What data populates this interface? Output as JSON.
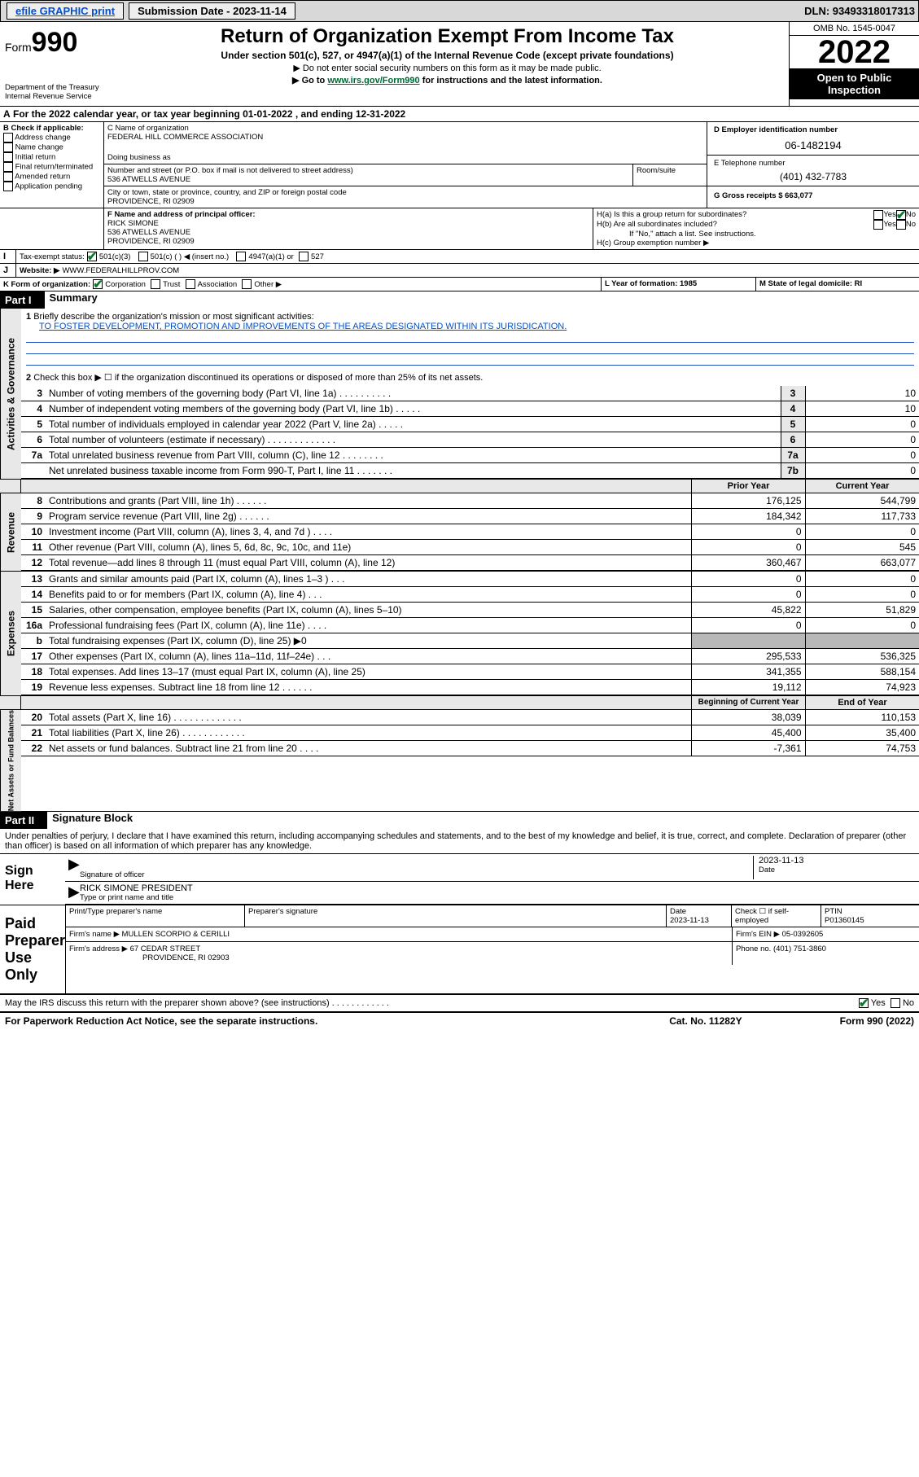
{
  "topbar": {
    "efile": "efile GRAPHIC print",
    "submission": "Submission Date - 2023-11-14",
    "dln": "DLN: 93493318017313"
  },
  "header": {
    "form": "Form",
    "num": "990",
    "dept": "Department of the Treasury",
    "irs": "Internal Revenue Service",
    "title": "Return of Organization Exempt From Income Tax",
    "sub": "Under section 501(c), 527, or 4947(a)(1) of the Internal Revenue Code (except private foundations)",
    "note1": "▶ Do not enter social security numbers on this form as it may be made public.",
    "note2_pre": "▶ Go to ",
    "note2_link": "www.irs.gov/Form990",
    "note2_post": " for instructions and the latest information.",
    "omb": "OMB No. 1545-0047",
    "year": "2022",
    "open": "Open to Public Inspection"
  },
  "A": {
    "text": "For the 2022 calendar year, or tax year beginning 01-01-2022   , and ending 12-31-2022"
  },
  "B": {
    "label": "B Check if applicable:",
    "items": [
      "Address change",
      "Name change",
      "Initial return",
      "Final return/terminated",
      "Amended return",
      "Application pending"
    ]
  },
  "C": {
    "label": "C Name of organization",
    "name": "FEDERAL HILL COMMERCE ASSOCIATION",
    "dba_label": "Doing business as",
    "addr_label": "Number and street (or P.O. box if mail is not delivered to street address)",
    "room": "Room/suite",
    "addr": "536 ATWELLS AVENUE",
    "city_label": "City or town, state or province, country, and ZIP or foreign postal code",
    "city": "PROVIDENCE, RI  02909"
  },
  "D": {
    "label": "D Employer identification number",
    "val": "06-1482194"
  },
  "E": {
    "label": "E Telephone number",
    "val": "(401) 432-7783"
  },
  "G": {
    "label": "G Gross receipts $ 663,077"
  },
  "F": {
    "label": "F Name and address of principal officer:",
    "name": "RICK SIMONE",
    "addr1": "536 ATWELLS AVENUE",
    "addr2": "PROVIDENCE, RI  02909"
  },
  "H": {
    "a": "H(a)  Is this a group return for subordinates?",
    "b": "H(b)  Are all subordinates included?",
    "bnote": "If \"No,\" attach a list. See instructions.",
    "c": "H(c)  Group exemption number ▶",
    "yes": "Yes",
    "no": "No"
  },
  "I": {
    "label": "Tax-exempt status:",
    "o1": "501(c)(3)",
    "o2": "501(c) (  ) ◀ (insert no.)",
    "o3": "4947(a)(1) or",
    "o4": "527"
  },
  "J": {
    "label": "Website: ▶",
    "val": "WWW.FEDERALHILLPROV.COM"
  },
  "K": {
    "label": "K Form of organization:",
    "corp": "Corporation",
    "trust": "Trust",
    "assoc": "Association",
    "other": "Other ▶"
  },
  "L": {
    "label": "L Year of formation: 1985"
  },
  "M": {
    "label": "M State of legal domicile: RI"
  },
  "part1": {
    "name": "Part I",
    "title": "Summary"
  },
  "summary": {
    "l1a": "Briefly describe the organization's mission or most significant activities:",
    "l1b": "TO FOSTER DEVELOPMENT, PROMOTION AND IMPROVEMENTS OF THE AREAS DESIGNATED WITHIN ITS JURISDICATION.",
    "l2": "Check this box ▶ ☐  if the organization discontinued its operations or disposed of more than 25% of its net assets.",
    "gov": [
      {
        "n": "3",
        "t": "Number of voting members of the governing body (Part VI, line 1a)  .  .  .  .  .  .  .  .  .  .",
        "r": "3",
        "v": "10"
      },
      {
        "n": "4",
        "t": "Number of independent voting members of the governing body (Part VI, line 1b)  .  .  .  .  .",
        "r": "4",
        "v": "10"
      },
      {
        "n": "5",
        "t": "Total number of individuals employed in calendar year 2022 (Part V, line 2a)  .  .  .  .  .",
        "r": "5",
        "v": "0"
      },
      {
        "n": "6",
        "t": "Total number of volunteers (estimate if necessary)  .  .  .  .  .  .  .  .  .  .  .  .  .",
        "r": "6",
        "v": "0"
      },
      {
        "n": "7a",
        "t": "Total unrelated business revenue from Part VIII, column (C), line 12  .  .  .  .  .  .  .  .",
        "r": "7a",
        "v": "0"
      },
      {
        "n": "",
        "t": "Net unrelated business taxable income from Form 990-T, Part I, line 11  .  .  .  .  .  .  .",
        "r": "7b",
        "v": "0"
      }
    ],
    "hdr_prior": "Prior Year",
    "hdr_curr": "Current Year",
    "rev": [
      {
        "n": "8",
        "t": "Contributions and grants (Part VIII, line 1h)  .  .  .  .  .  .",
        "p": "176,125",
        "c": "544,799"
      },
      {
        "n": "9",
        "t": "Program service revenue (Part VIII, line 2g)  .  .  .  .  .  .",
        "p": "184,342",
        "c": "117,733"
      },
      {
        "n": "10",
        "t": "Investment income (Part VIII, column (A), lines 3, 4, and 7d )  .  .  .  .",
        "p": "0",
        "c": "0"
      },
      {
        "n": "11",
        "t": "Other revenue (Part VIII, column (A), lines 5, 6d, 8c, 9c, 10c, and 11e)",
        "p": "0",
        "c": "545"
      },
      {
        "n": "12",
        "t": "Total revenue—add lines 8 through 11 (must equal Part VIII, column (A), line 12)",
        "p": "360,467",
        "c": "663,077"
      }
    ],
    "exp": [
      {
        "n": "13",
        "t": "Grants and similar amounts paid (Part IX, column (A), lines 1–3 )  .  .  .",
        "p": "0",
        "c": "0"
      },
      {
        "n": "14",
        "t": "Benefits paid to or for members (Part IX, column (A), line 4)  .  .  .",
        "p": "0",
        "c": "0"
      },
      {
        "n": "15",
        "t": "Salaries, other compensation, employee benefits (Part IX, column (A), lines 5–10)",
        "p": "45,822",
        "c": "51,829"
      },
      {
        "n": "16a",
        "t": "Professional fundraising fees (Part IX, column (A), line 11e)  .  .  .  .",
        "p": "0",
        "c": "0"
      },
      {
        "n": "b",
        "t": "Total fundraising expenses (Part IX, column (D), line 25) ▶0",
        "p": "",
        "c": "",
        "shade": true
      },
      {
        "n": "17",
        "t": "Other expenses (Part IX, column (A), lines 11a–11d, 11f–24e)  .  .  .",
        "p": "295,533",
        "c": "536,325"
      },
      {
        "n": "18",
        "t": "Total expenses. Add lines 13–17 (must equal Part IX, column (A), line 25)",
        "p": "341,355",
        "c": "588,154"
      },
      {
        "n": "19",
        "t": "Revenue less expenses. Subtract line 18 from line 12  .  .  .  .  .  .",
        "p": "19,112",
        "c": "74,923"
      }
    ],
    "hdr_beg": "Beginning of Current Year",
    "hdr_end": "End of Year",
    "net": [
      {
        "n": "20",
        "t": "Total assets (Part X, line 16)  .  .  .  .  .  .  .  .  .  .  .  .  .",
        "p": "38,039",
        "c": "110,153"
      },
      {
        "n": "21",
        "t": "Total liabilities (Part X, line 26)  .  .  .  .  .  .  .  .  .  .  .  .",
        "p": "45,400",
        "c": "35,400"
      },
      {
        "n": "22",
        "t": "Net assets or fund balances. Subtract line 21 from line 20  .  .  .  .",
        "p": "-7,361",
        "c": "74,753"
      }
    ]
  },
  "vert": {
    "gov": "Activities & Governance",
    "rev": "Revenue",
    "exp": "Expenses",
    "net": "Net Assets or Fund Balances"
  },
  "part2": {
    "name": "Part II",
    "title": "Signature Block"
  },
  "sig": {
    "decl": "Under penalties of perjury, I declare that I have examined this return, including accompanying schedules and statements, and to the best of my knowledge and belief, it is true, correct, and complete. Declaration of preparer (other than officer) is based on all information of which preparer has any knowledge.",
    "here": "Sign Here",
    "sig_of": "Signature of officer",
    "date": "Date",
    "date_val": "2023-11-13",
    "name": "RICK SIMONE  PRESIDENT",
    "name_lbl": "Type or print name and title",
    "paid": "Paid Preparer Use Only",
    "p_name": "Print/Type preparer's name",
    "p_sig": "Preparer's signature",
    "p_date": "Date",
    "p_date_v": "2023-11-13",
    "p_self": "Check ☐ if self-employed",
    "ptin": "PTIN",
    "ptin_v": "P01360145",
    "firm": "Firm's name   ▶",
    "firm_v": "MULLEN SCORPIO & CERILLI",
    "fein": "Firm's EIN ▶ 05-0392605",
    "faddr": "Firm's address ▶",
    "faddr_v1": "67 CEDAR STREET",
    "faddr_v2": "PROVIDENCE, RI  02903",
    "fphone": "Phone no. (401) 751-3860",
    "may": "May the IRS discuss this return with the preparer shown above? (see instructions)  .  .  .  .  .  .  .  .  .  .  .  .",
    "yes": "Yes",
    "no": "No"
  },
  "footer": {
    "l": "For Paperwork Reduction Act Notice, see the separate instructions.",
    "m": "Cat. No. 11282Y",
    "r": "Form 990 (2022)"
  }
}
